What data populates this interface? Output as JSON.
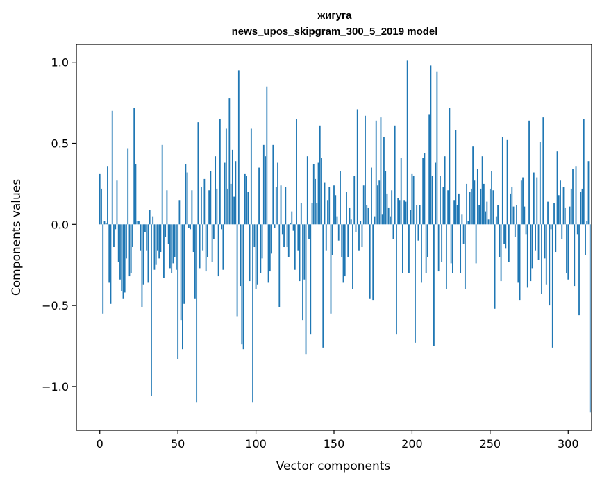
{
  "chart_data": {
    "type": "bar",
    "title": "жигуга",
    "subtitle": "news_upos_skipgram_300_5_2019 model",
    "xlabel": "Vector components",
    "ylabel": "Components values",
    "xlim": [
      -15,
      315
    ],
    "ylim": [
      -1.27,
      1.11
    ],
    "xticks": [
      0,
      50,
      100,
      150,
      200,
      250,
      300
    ],
    "xtick_labels": [
      "0",
      "50",
      "100",
      "150",
      "200",
      "250",
      "300"
    ],
    "yticks": [
      -1.0,
      -0.5,
      0.0,
      0.5,
      1.0
    ],
    "ytick_labels": [
      "−1.0",
      "−0.5",
      "0.0",
      "0.5",
      "1.0"
    ],
    "color": "#1f77b4",
    "values": [
      0.31,
      0.22,
      -0.55,
      0.02,
      0.01,
      0.36,
      -0.36,
      -0.49,
      0.7,
      -0.14,
      -0.03,
      0.27,
      -0.23,
      -0.34,
      -0.41,
      -0.46,
      -0.42,
      -0.21,
      0.47,
      -0.32,
      -0.3,
      -0.14,
      0.72,
      0.37,
      0.02,
      0.02,
      -0.16,
      -0.51,
      -0.37,
      -0.05,
      -0.16,
      -0.36,
      0.09,
      -1.06,
      0.05,
      -0.28,
      -0.25,
      -0.16,
      -0.21,
      -0.17,
      0.49,
      -0.33,
      -0.08,
      0.21,
      -0.12,
      -0.27,
      -0.3,
      -0.24,
      -0.2,
      -0.28,
      -0.83,
      0.15,
      -0.59,
      -0.77,
      -0.49,
      0.37,
      0.32,
      -0.02,
      -0.03,
      0.21,
      -0.17,
      -0.46,
      -1.1,
      0.63,
      -0.27,
      0.23,
      -0.16,
      0.28,
      -0.29,
      -0.2,
      0.21,
      0.33,
      -0.23,
      -0.09,
      0.42,
      0.22,
      -0.32,
      0.65,
      -0.03,
      -0.28,
      0.38,
      0.59,
      0.22,
      0.78,
      0.25,
      0.46,
      0.17,
      0.39,
      -0.57,
      0.95,
      -0.38,
      -0.74,
      -0.77,
      0.31,
      0.3,
      0.2,
      -0.35,
      0.59,
      -1.1,
      -0.14,
      -0.4,
      -0.37,
      0.35,
      -0.3,
      -0.21,
      0.49,
      0.42,
      0.85,
      -0.36,
      -0.29,
      -0.18,
      0.49,
      -0.02,
      0.23,
      0.38,
      -0.51,
      0.24,
      -0.06,
      -0.14,
      0.23,
      -0.14,
      -0.2,
      0.01,
      0.08,
      -0.04,
      -0.28,
      0.65,
      -0.16,
      -0.35,
      0.13,
      -0.59,
      -0.34,
      -0.8,
      0.42,
      -0.09,
      -0.68,
      0.13,
      0.37,
      0.28,
      0.13,
      0.38,
      0.61,
      0.41,
      -0.76,
      0.26,
      -0.16,
      0.15,
      0.23,
      -0.55,
      -0.19,
      0.24,
      0.18,
      0.05,
      -0.1,
      0.33,
      -0.2,
      -0.36,
      -0.32,
      0.2,
      -0.2,
      0.1,
      0.03,
      -0.4,
      0.3,
      -0.05,
      0.71,
      -0.16,
      0.02,
      -0.14,
      0.24,
      0.67,
      0.12,
      0.1,
      -0.46,
      0.35,
      -0.47,
      0.05,
      0.64,
      0.24,
      0.27,
      0.66,
      0.06,
      0.54,
      0.33,
      0.19,
      0.1,
      0.05,
      0.21,
      -0.09,
      0.61,
      -0.68,
      0.16,
      0.15,
      0.41,
      -0.3,
      0.15,
      0.14,
      1.01,
      -0.3,
      0.09,
      0.31,
      0.3,
      -0.73,
      0.12,
      -0.1,
      0.12,
      -0.36,
      0.41,
      0.44,
      -0.3,
      -0.2,
      0.68,
      0.98,
      0.3,
      -0.75,
      0.38,
      0.94,
      -0.29,
      0.3,
      -0.23,
      0.23,
      0.42,
      -0.4,
      0.21,
      0.72,
      -0.24,
      -0.3,
      0.15,
      0.58,
      0.12,
      0.19,
      -0.3,
      0.06,
      -0.12,
      -0.4,
      0.25,
      0.02,
      0.2,
      0.22,
      0.48,
      0.27,
      -0.24,
      0.34,
      0.12,
      0.22,
      0.42,
      0.25,
      0.08,
      0.14,
      0.03,
      0.22,
      0.33,
      0.21,
      -0.52,
      0.05,
      0.12,
      -0.2,
      -0.35,
      0.54,
      -0.12,
      -0.15,
      0.52,
      -0.23,
      0.19,
      0.23,
      0.11,
      -0.08,
      0.12,
      -0.36,
      -0.47,
      0.27,
      0.29,
      0.11,
      -0.06,
      -0.39,
      0.64,
      -0.35,
      -0.27,
      0.32,
      -0.16,
      0.29,
      -0.22,
      0.51,
      -0.43,
      0.66,
      -0.21,
      -0.37,
      0.14,
      -0.5,
      -0.03,
      -0.76,
      0.13,
      -0.17,
      0.45,
      0.18,
      0.27,
      -0.09,
      0.23,
      0.1,
      -0.3,
      -0.34,
      0.11,
      0.22,
      0.34,
      -0.38,
      0.36,
      -0.06,
      -0.56,
      0.2,
      0.22,
      0.65,
      -0.19,
      0.02,
      0.39,
      -1.16
    ]
  }
}
